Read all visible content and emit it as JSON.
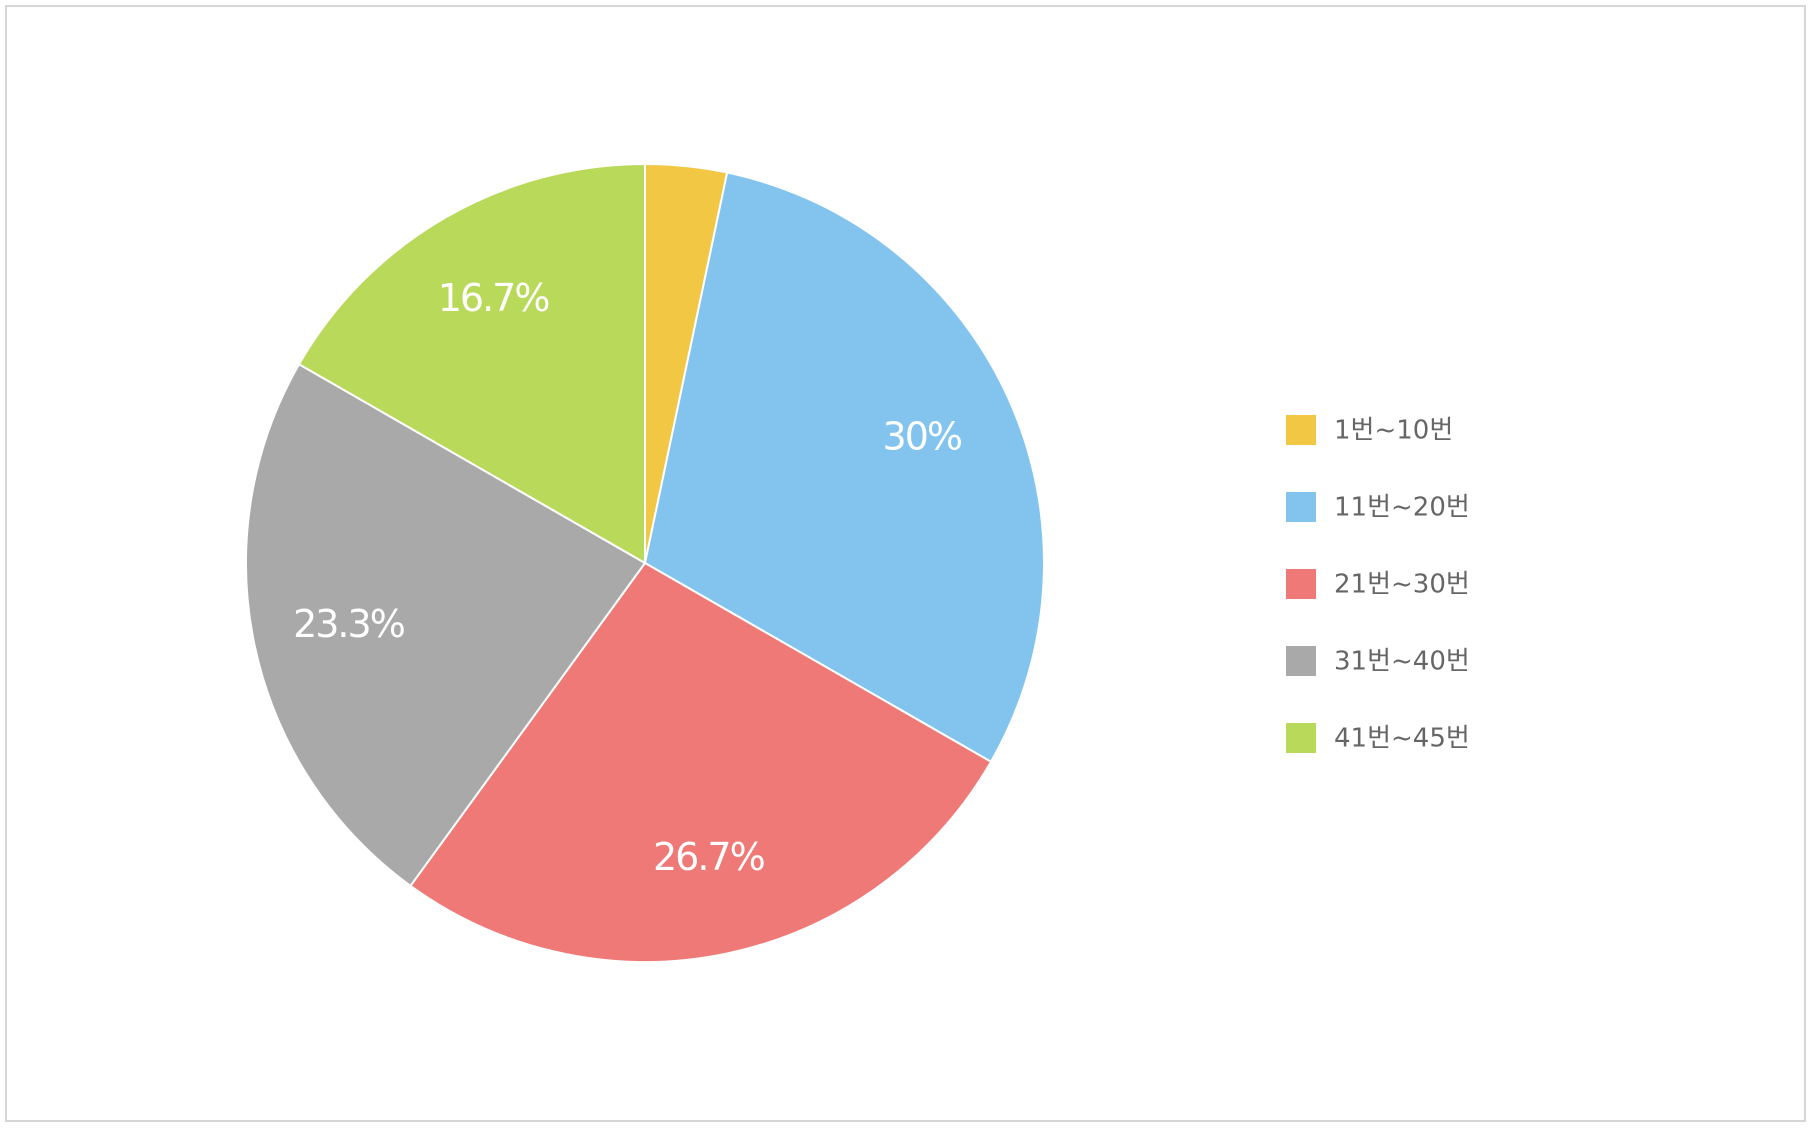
{
  "chart_data": {
    "type": "pie",
    "categories": [
      "1번~10번",
      "11번~20번",
      "21번~30번",
      "31번~40번",
      "41번~45번"
    ],
    "values": [
      3.3,
      30,
      26.7,
      23.3,
      16.7
    ],
    "value_labels": [
      null,
      "30%",
      "26.7%",
      "23.3%",
      "16.7%"
    ],
    "colors": [
      "#f2c744",
      "#82c4ee",
      "#ef7976",
      "#a9a9a9",
      "#b9d95b"
    ],
    "legend": "right"
  }
}
